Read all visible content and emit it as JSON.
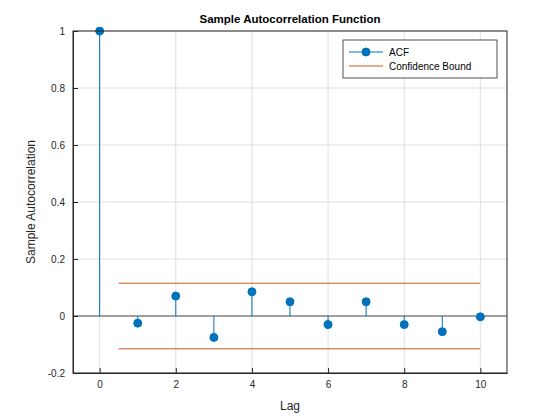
{
  "chart_data": {
    "type": "stem",
    "title": "Sample Autocorrelation Function",
    "x_label": "Lag",
    "y_label": "Sample Autocorrelation",
    "x": [
      0,
      1,
      2,
      3,
      4,
      5,
      6,
      7,
      8,
      9,
      10
    ],
    "series": [
      {
        "name": "ACF",
        "type": "stem",
        "color": "#0072bd",
        "marker": "circle",
        "values": [
          1,
          -0.025,
          0.07,
          -0.075,
          0.085,
          0.05,
          -0.03,
          0.05,
          -0.03,
          -0.055,
          -0.003
        ]
      },
      {
        "name": "Confidence Bound",
        "type": "line",
        "color": "#d95319",
        "line_style": "solid",
        "x": [
          0.5,
          10
        ],
        "values": [
          0.115,
          0.115
        ],
        "lower_values": [
          -0.115,
          -0.115
        ]
      }
    ],
    "xlim": [
      -0.7,
      10.7
    ],
    "ylim": [
      -0.2,
      1
    ],
    "xticks": [
      0,
      2,
      4,
      6,
      8,
      10
    ],
    "yticks": [
      -0.2,
      0,
      0.2,
      0.4,
      0.6,
      0.8,
      1
    ],
    "grid": true,
    "legend": "northeast"
  }
}
